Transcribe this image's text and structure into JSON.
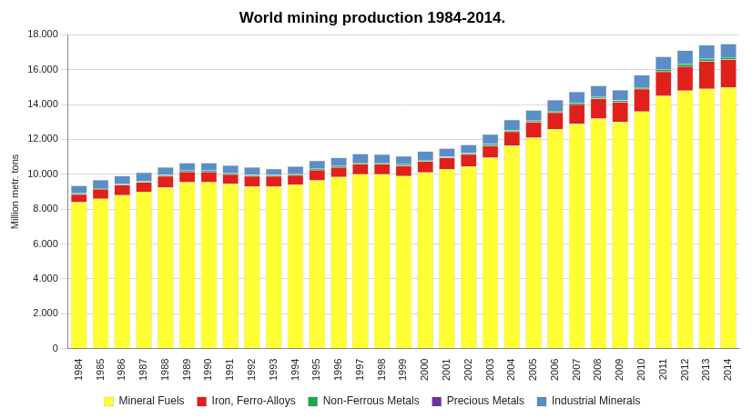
{
  "chart_data": {
    "type": "bar",
    "title": "World mining production 1984-2014.",
    "y_label": "Million metr. tons",
    "categories": [
      "1984",
      "1985",
      "1986",
      "1987",
      "1988",
      "1989",
      "1990",
      "1991",
      "1992",
      "1993",
      "1994",
      "1995",
      "1996",
      "1997",
      "1998",
      "1999",
      "2000",
      "2001",
      "2002",
      "2003",
      "2004",
      "2005",
      "2006",
      "2007",
      "2008",
      "2009",
      "2010",
      "2011",
      "2012",
      "2013",
      "2014"
    ],
    "series": [
      {
        "name": "Mineral Fuels",
        "color": "#ffff33",
        "values": [
          8400,
          8600,
          8800,
          9000,
          9250,
          9550,
          9550,
          9450,
          9300,
          9300,
          9400,
          9650,
          9850,
          10000,
          10000,
          9900,
          10100,
          10300,
          10450,
          10950,
          11650,
          12100,
          12600,
          12900,
          13200,
          13000,
          13600,
          14500,
          14800,
          14900,
          15000
        ]
      },
      {
        "name": "Iron, Ferro-Alloys",
        "color": "#e0201b",
        "values": [
          450,
          550,
          600,
          550,
          650,
          600,
          600,
          550,
          600,
          600,
          550,
          600,
          550,
          600,
          600,
          600,
          650,
          650,
          700,
          700,
          800,
          900,
          950,
          1100,
          1150,
          1150,
          1300,
          1400,
          1400,
          1600,
          1600
        ]
      },
      {
        "name": "Non-Ferrous Metals",
        "color": "#1fa64a",
        "values": [
          60,
          60,
          60,
          60,
          60,
          60,
          60,
          60,
          60,
          60,
          60,
          70,
          70,
          70,
          70,
          70,
          70,
          70,
          70,
          80,
          80,
          80,
          90,
          90,
          90,
          90,
          100,
          110,
          110,
          120,
          120
        ]
      },
      {
        "name": "Precious Metals",
        "color": "#7030a0",
        "values": [
          0,
          0,
          0,
          0,
          0,
          0,
          0,
          0,
          0,
          0,
          0,
          0,
          0,
          0,
          0,
          0,
          0,
          0,
          0,
          0,
          0,
          0,
          0,
          0,
          0,
          0,
          0,
          0,
          0,
          0,
          0
        ]
      },
      {
        "name": "Industrial Minerals",
        "color": "#5b8ec6",
        "values": [
          440,
          460,
          450,
          500,
          450,
          450,
          450,
          450,
          450,
          350,
          450,
          460,
          480,
          500,
          480,
          480,
          500,
          470,
          480,
          570,
          600,
          600,
          630,
          650,
          650,
          600,
          700,
          750,
          800,
          800,
          760
        ]
      }
    ],
    "stacked": true,
    "ylim": [
      0,
      18000
    ],
    "yticks": [
      0,
      {
        "value": 2000,
        "label": "2.000"
      },
      {
        "value": 4000,
        "label": "4.000"
      },
      {
        "value": 6000,
        "label": "6.000"
      },
      {
        "value": 8000,
        "label": "8.000"
      },
      {
        "value": 10000,
        "label": "10.000"
      },
      {
        "value": 12000,
        "label": "12.000"
      },
      {
        "value": 14000,
        "label": "14.000"
      },
      {
        "value": 16000,
        "label": "16.000"
      },
      {
        "value": 18000,
        "label": "18.000"
      }
    ],
    "grid": true,
    "legend": "bottom"
  }
}
